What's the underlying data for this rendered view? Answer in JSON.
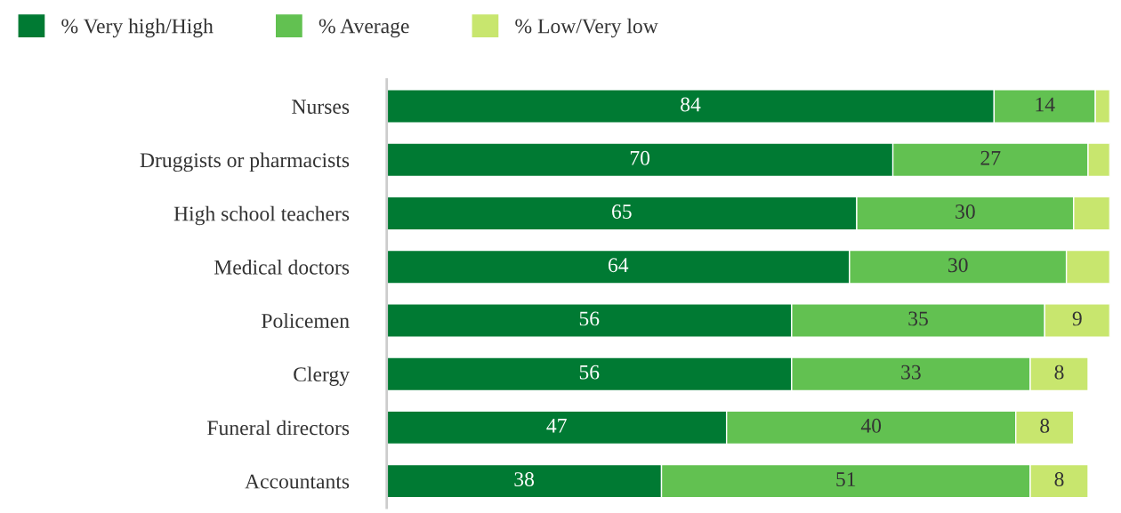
{
  "chart_data": {
    "type": "bar",
    "orientation": "horizontal",
    "stacked": true,
    "legend": "top left",
    "grid": false,
    "tick_labels": "y",
    "categories": [
      "Nurses",
      "Druggists or pharmacists",
      "High school teachers",
      "Medical doctors",
      "Policemen",
      "Clergy",
      "Funeral directors",
      "Accountants"
    ],
    "series": [
      {
        "name": "% Very high/High",
        "color": "#007a33",
        "values": [
          84,
          70,
          65,
          64,
          56,
          56,
          47,
          38
        ],
        "value_labels": [
          "84",
          "70",
          "65",
          "64",
          "56",
          "56",
          "47",
          "38"
        ]
      },
      {
        "name": "% Average",
        "color": "#62c151",
        "values": [
          14,
          27,
          30,
          30,
          35,
          33,
          40,
          51
        ],
        "value_labels": [
          "14",
          "27",
          "30",
          "30",
          "35",
          "33",
          "40",
          "51"
        ]
      },
      {
        "name": "% Low/Very low",
        "color": "#c8e66e",
        "values": [
          2,
          3,
          5,
          6,
          9,
          8,
          8,
          8
        ],
        "value_labels": [
          null,
          null,
          null,
          null,
          "9",
          "8",
          "8",
          "8"
        ]
      }
    ]
  }
}
